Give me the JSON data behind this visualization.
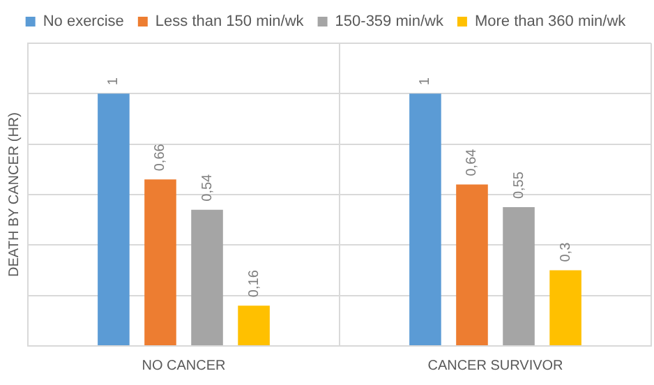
{
  "chart_data": {
    "type": "bar",
    "ylabel": "DEATH BY CANCER (HR)",
    "categories": [
      "NO CANCER",
      "CANCER SURVIVOR"
    ],
    "series": [
      {
        "name": "No exercise",
        "color": "#5b9bd5",
        "values": [
          1,
          1
        ],
        "value_labels": [
          "1",
          "1"
        ]
      },
      {
        "name": "Less than 150 min/wk",
        "color": "#ed7d31",
        "values": [
          0.66,
          0.64
        ],
        "value_labels": [
          "0,66",
          "0,64"
        ]
      },
      {
        "name": "150-359 min/wk",
        "color": "#a5a5a5",
        "values": [
          0.54,
          0.55
        ],
        "value_labels": [
          "0,54",
          "0,55"
        ]
      },
      {
        "name": "More than 360 min/wk",
        "color": "#ffc000",
        "values": [
          0.16,
          0.3
        ],
        "value_labels": [
          "0,16",
          "0,3"
        ]
      }
    ],
    "ylim": [
      0,
      1.2
    ],
    "yticks": [
      {
        "value": 0,
        "label": null
      },
      {
        "value": 0.2,
        "label": null
      },
      {
        "value": 0.4,
        "label": null
      },
      {
        "value": 0.6,
        "label": null
      },
      {
        "value": 0.8,
        "label": null
      },
      {
        "value": 1,
        "label": null
      },
      {
        "value": 1.2,
        "label": null
      }
    ],
    "tick_labels": "x",
    "grid": true,
    "legend": "top"
  }
}
